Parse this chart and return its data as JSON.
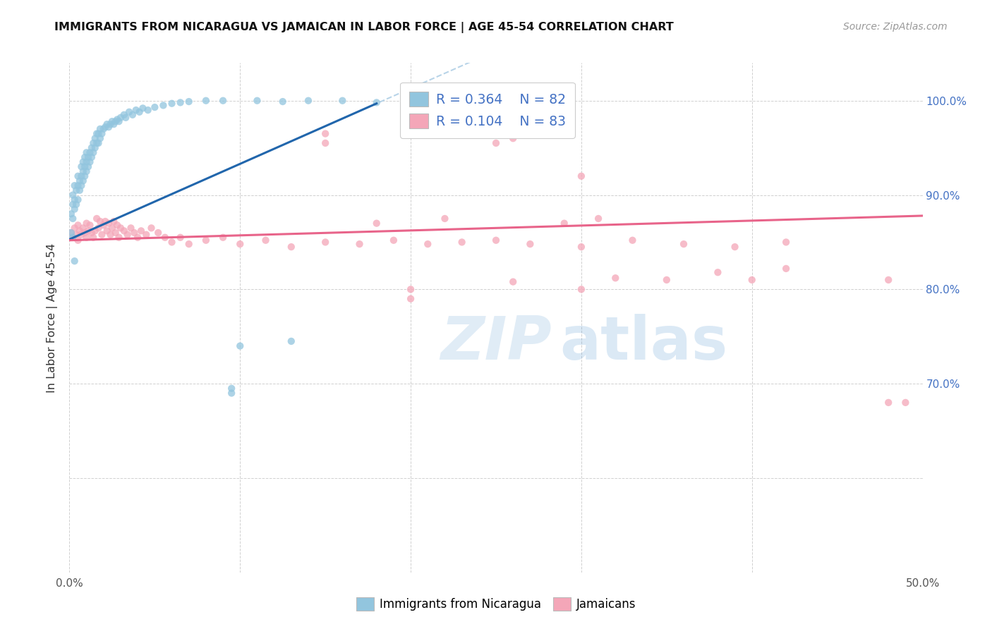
{
  "title": "IMMIGRANTS FROM NICARAGUA VS JAMAICAN IN LABOR FORCE | AGE 45-54 CORRELATION CHART",
  "source": "Source: ZipAtlas.com",
  "ylabel": "In Labor Force | Age 45-54",
  "x_min": 0.0,
  "x_max": 0.5,
  "y_min": 0.5,
  "y_max": 1.04,
  "x_tick_positions": [
    0.0,
    0.1,
    0.2,
    0.3,
    0.4,
    0.5
  ],
  "x_tick_labels": [
    "0.0%",
    "",
    "",
    "",
    "",
    "50.0%"
  ],
  "y_tick_positions": [
    0.5,
    0.6,
    0.7,
    0.8,
    0.9,
    1.0
  ],
  "y_tick_labels_right": [
    "",
    "",
    "70.0%",
    "80.0%",
    "90.0%",
    "100.0%"
  ],
  "legend_label1": "Immigrants from Nicaragua",
  "legend_label2": "Jamaicans",
  "color_blue": "#92c5de",
  "color_pink": "#f4a6b8",
  "color_blue_line": "#2166ac",
  "color_pink_line": "#e8648a",
  "color_dashed": "#b8d4e8",
  "nic_x": [
    0.001,
    0.001,
    0.002,
    0.002,
    0.002,
    0.003,
    0.003,
    0.003,
    0.004,
    0.004,
    0.005,
    0.005,
    0.005,
    0.006,
    0.006,
    0.007,
    0.007,
    0.007,
    0.008,
    0.008,
    0.008,
    0.009,
    0.009,
    0.009,
    0.01,
    0.01,
    0.01,
    0.011,
    0.011,
    0.012,
    0.012,
    0.013,
    0.013,
    0.014,
    0.014,
    0.015,
    0.015,
    0.016,
    0.016,
    0.017,
    0.017,
    0.018,
    0.018,
    0.019,
    0.02,
    0.021,
    0.022,
    0.023,
    0.024,
    0.025,
    0.026,
    0.027,
    0.028,
    0.029,
    0.03,
    0.032,
    0.033,
    0.035,
    0.037,
    0.039,
    0.041,
    0.043,
    0.046,
    0.05,
    0.055,
    0.06,
    0.065,
    0.07,
    0.08,
    0.09,
    0.095,
    0.1,
    0.11,
    0.125,
    0.14,
    0.16,
    0.18,
    0.2,
    0.002,
    0.003,
    0.095,
    0.13
  ],
  "nic_y": [
    0.86,
    0.88,
    0.875,
    0.89,
    0.9,
    0.885,
    0.895,
    0.91,
    0.89,
    0.905,
    0.895,
    0.91,
    0.92,
    0.905,
    0.915,
    0.91,
    0.92,
    0.93,
    0.915,
    0.925,
    0.935,
    0.92,
    0.93,
    0.94,
    0.925,
    0.935,
    0.945,
    0.93,
    0.94,
    0.935,
    0.945,
    0.94,
    0.95,
    0.945,
    0.955,
    0.95,
    0.96,
    0.955,
    0.965,
    0.955,
    0.965,
    0.96,
    0.97,
    0.965,
    0.97,
    0.972,
    0.975,
    0.972,
    0.975,
    0.978,
    0.975,
    0.978,
    0.98,
    0.978,
    0.982,
    0.985,
    0.982,
    0.988,
    0.985,
    0.99,
    0.988,
    0.992,
    0.99,
    0.993,
    0.995,
    0.997,
    0.998,
    0.999,
    1.0,
    1.0,
    0.69,
    0.74,
    1.0,
    0.999,
    1.0,
    1.0,
    0.998,
    0.99,
    0.855,
    0.83,
    0.695,
    0.745
  ],
  "jam_x": [
    0.001,
    0.002,
    0.003,
    0.004,
    0.005,
    0.005,
    0.006,
    0.007,
    0.008,
    0.009,
    0.01,
    0.01,
    0.011,
    0.012,
    0.013,
    0.014,
    0.015,
    0.016,
    0.017,
    0.018,
    0.019,
    0.02,
    0.021,
    0.022,
    0.023,
    0.024,
    0.025,
    0.026,
    0.027,
    0.028,
    0.029,
    0.03,
    0.032,
    0.034,
    0.036,
    0.038,
    0.04,
    0.042,
    0.045,
    0.048,
    0.052,
    0.056,
    0.06,
    0.065,
    0.07,
    0.08,
    0.09,
    0.1,
    0.115,
    0.13,
    0.15,
    0.17,
    0.19,
    0.21,
    0.23,
    0.25,
    0.27,
    0.3,
    0.33,
    0.36,
    0.39,
    0.42,
    0.15,
    0.25,
    0.2,
    0.3,
    0.35,
    0.2,
    0.4,
    0.48,
    0.15,
    0.26,
    0.3,
    0.18,
    0.22,
    0.29,
    0.31,
    0.26,
    0.32,
    0.38,
    0.42,
    0.48,
    0.49
  ],
  "jam_y": [
    0.86,
    0.855,
    0.865,
    0.858,
    0.852,
    0.868,
    0.862,
    0.858,
    0.865,
    0.86,
    0.87,
    0.855,
    0.862,
    0.868,
    0.86,
    0.855,
    0.862,
    0.875,
    0.865,
    0.872,
    0.858,
    0.868,
    0.872,
    0.862,
    0.87,
    0.858,
    0.865,
    0.872,
    0.86,
    0.868,
    0.855,
    0.865,
    0.862,
    0.858,
    0.865,
    0.86,
    0.855,
    0.862,
    0.858,
    0.865,
    0.86,
    0.855,
    0.85,
    0.855,
    0.848,
    0.852,
    0.855,
    0.848,
    0.852,
    0.845,
    0.85,
    0.848,
    0.852,
    0.848,
    0.85,
    0.852,
    0.848,
    0.845,
    0.852,
    0.848,
    0.845,
    0.85,
    0.965,
    0.955,
    0.79,
    0.8,
    0.81,
    0.8,
    0.81,
    0.68,
    0.955,
    0.96,
    0.92,
    0.87,
    0.875,
    0.87,
    0.875,
    0.808,
    0.812,
    0.818,
    0.822,
    0.81,
    0.68
  ]
}
